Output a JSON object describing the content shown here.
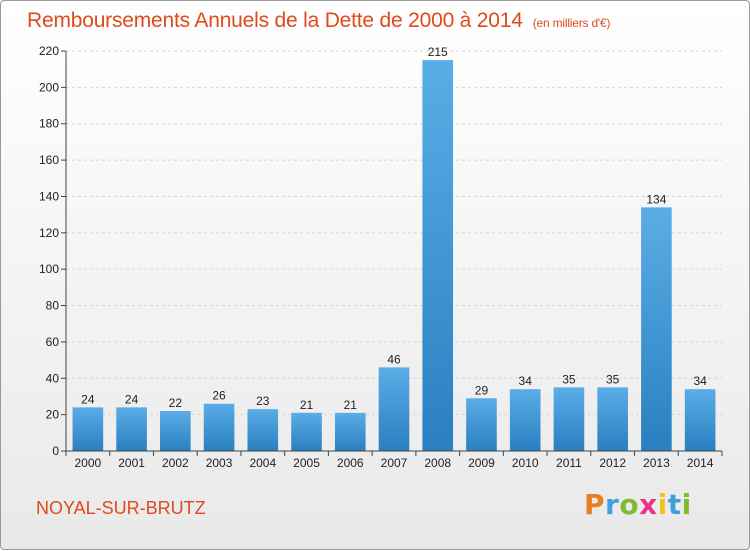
{
  "header": {
    "title": "Remboursements Annuels de la Dette de 2000 à 2014",
    "unit": "(en milliers d'€)"
  },
  "footer": {
    "commune": "NOYAL-SUR-BRUTZ",
    "logo_letters": [
      "P",
      "r",
      "o",
      "x",
      "i",
      "t",
      "i"
    ]
  },
  "colors": {
    "title": "#e04a1b",
    "bar_top": "#5aade6",
    "bar_bottom": "#2a7fc0"
  },
  "chart_data": {
    "type": "bar",
    "title": "Remboursements Annuels de la Dette de 2000 à 2014",
    "xlabel": "",
    "ylabel": "",
    "categories": [
      "2000",
      "2001",
      "2002",
      "2003",
      "2004",
      "2005",
      "2006",
      "2007",
      "2008",
      "2009",
      "2010",
      "2011",
      "2012",
      "2013",
      "2014"
    ],
    "values": [
      24,
      24,
      22,
      26,
      23,
      21,
      21,
      46,
      215,
      29,
      34,
      35,
      35,
      134,
      34
    ],
    "ylim": [
      0,
      220
    ],
    "yticks": [
      0,
      20,
      40,
      60,
      80,
      100,
      120,
      140,
      160,
      180,
      200,
      220
    ],
    "grid": true,
    "legend": "none"
  }
}
